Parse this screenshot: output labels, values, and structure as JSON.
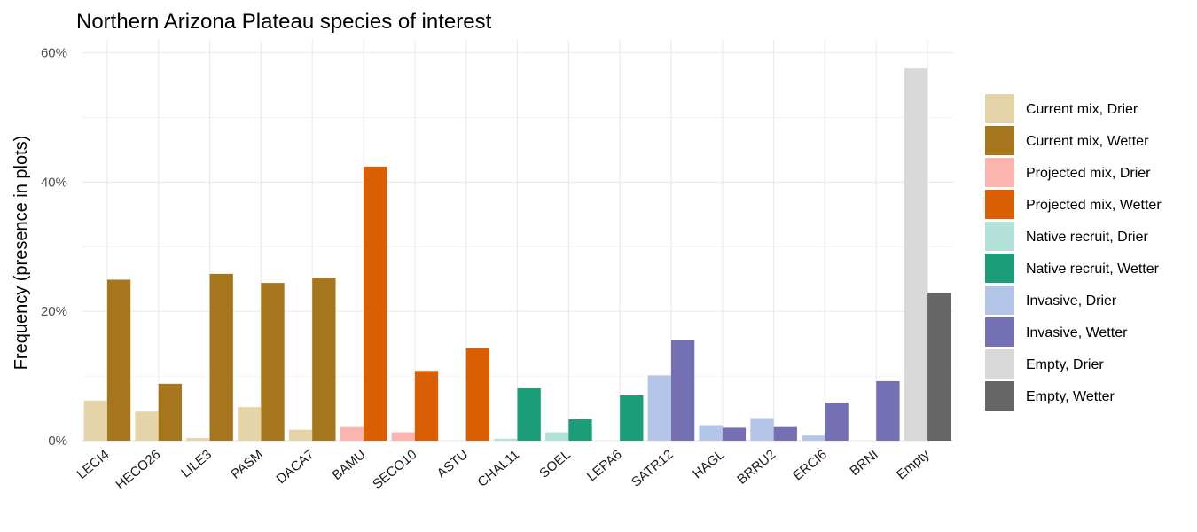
{
  "chart_data": {
    "type": "bar",
    "title": "Northern Arizona Plateau species of interest",
    "xlabel": "",
    "ylabel": "Frequency (presence in plots)",
    "ylim": [
      0,
      0.62
    ],
    "yticks": [
      0,
      0.2,
      0.4,
      0.6
    ],
    "ytick_labels": [
      "0%",
      "20%",
      "40%",
      "60%"
    ],
    "grid": true,
    "legend_position": "right",
    "categories": [
      "LECI4",
      "HECO26",
      "LILE3",
      "PASM",
      "DACA7",
      "BAMU",
      "SECO10",
      "ASTU",
      "CHAL11",
      "SOEL",
      "LEPA6",
      "SATR12",
      "HAGL",
      "BRRU2",
      "ERCI6",
      "BRNI",
      "Empty"
    ],
    "series": [
      {
        "name": "Current mix, Drier",
        "color": "#e5d4a7",
        "values": [
          0.062,
          0.045,
          0.004,
          0.052,
          0.017,
          null,
          null,
          null,
          null,
          null,
          null,
          null,
          null,
          null,
          null,
          null,
          null
        ]
      },
      {
        "name": "Current mix, Wetter",
        "color": "#a6761d",
        "values": [
          0.249,
          0.088,
          0.258,
          0.244,
          0.252,
          null,
          null,
          null,
          null,
          null,
          null,
          null,
          null,
          null,
          null,
          null,
          null
        ]
      },
      {
        "name": "Projected mix, Drier",
        "color": "#fbb4ae",
        "values": [
          null,
          null,
          null,
          null,
          null,
          0.021,
          0.013,
          null,
          null,
          null,
          null,
          null,
          null,
          null,
          null,
          null,
          null
        ]
      },
      {
        "name": "Projected mix, Wetter",
        "color": "#d95f02",
        "values": [
          null,
          null,
          null,
          null,
          null,
          0.424,
          0.108,
          0.143,
          null,
          null,
          null,
          null,
          null,
          null,
          null,
          null,
          null
        ]
      },
      {
        "name": "Native recruit, Drier",
        "color": "#b3e2d8",
        "values": [
          null,
          null,
          null,
          null,
          null,
          null,
          null,
          null,
          0.003,
          0.013,
          null,
          null,
          null,
          null,
          null,
          null,
          null
        ]
      },
      {
        "name": "Native recruit, Wetter",
        "color": "#1b9e77",
        "values": [
          null,
          null,
          null,
          null,
          null,
          null,
          null,
          null,
          0.081,
          0.033,
          0.07,
          null,
          null,
          null,
          null,
          null,
          null
        ]
      },
      {
        "name": "Invasive, Drier",
        "color": "#b3c6e8",
        "values": [
          null,
          null,
          null,
          null,
          null,
          null,
          null,
          null,
          null,
          null,
          null,
          0.101,
          0.024,
          0.035,
          0.008,
          null,
          null
        ]
      },
      {
        "name": "Invasive, Wetter",
        "color": "#7570b3",
        "values": [
          null,
          null,
          null,
          null,
          null,
          null,
          null,
          null,
          null,
          null,
          null,
          0.155,
          0.02,
          0.021,
          0.059,
          0.092,
          null
        ]
      },
      {
        "name": "Empty, Drier",
        "color": "#d9d9d9",
        "values": [
          null,
          null,
          null,
          null,
          null,
          null,
          null,
          null,
          null,
          null,
          null,
          null,
          null,
          null,
          null,
          null,
          0.576
        ]
      },
      {
        "name": "Empty, Wetter",
        "color": "#666666",
        "values": [
          null,
          null,
          null,
          null,
          null,
          null,
          null,
          null,
          null,
          null,
          null,
          null,
          null,
          null,
          null,
          null,
          0.229
        ]
      }
    ]
  }
}
